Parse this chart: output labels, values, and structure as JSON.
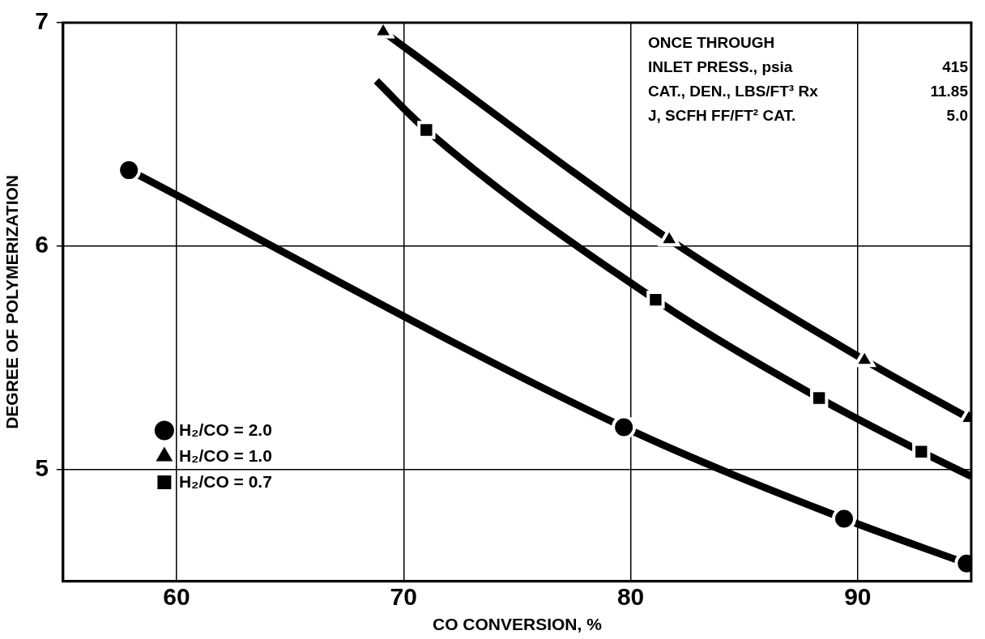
{
  "chart_data": {
    "type": "scatter",
    "xlabel": "CO CONVERSION, %",
    "ylabel": "DEGREE OF POLYMERIZATION",
    "xlim": [
      55,
      95
    ],
    "xticks": [
      60,
      70,
      80,
      90
    ],
    "ylim": [
      4.5,
      7
    ],
    "yticks": [
      5,
      6,
      7
    ],
    "grid": true,
    "legend": "left",
    "annotations": [
      "ONCE THROUGH",
      "INLET PRESS., psia 415",
      "CAT., DEN., LBS/FT³ Rx 11.85",
      "J, SCFH FF/FT² CAT. 5.0"
    ],
    "series": [
      {
        "type": "line",
        "marker": "none",
        "color": "#000000",
        "x": [
          57.9,
          79.7,
          89.4,
          94.8
        ],
        "values": [
          6.34,
          5.19,
          4.78,
          4.58
        ]
      },
      {
        "type": "line",
        "marker": "none",
        "color": "#000000",
        "x": [
          69.1,
          81.7,
          90.3,
          94.9
        ],
        "values": [
          6.96,
          6.03,
          5.49,
          5.23
        ]
      },
      {
        "type": "line",
        "marker": "none",
        "color": "#000000",
        "x": [
          68.8,
          71.0,
          81.1,
          88.3,
          92.8,
          95
        ],
        "values": [
          6.74,
          6.52,
          5.76,
          5.32,
          5.08,
          4.97
        ]
      },
      {
        "name": "H₂/CO = 2.0",
        "type": "scatter",
        "marker": "circle",
        "color": "#000000",
        "x": [
          57.9,
          79.7,
          89.4,
          94.8
        ],
        "values": [
          6.34,
          5.19,
          4.78,
          4.58
        ]
      },
      {
        "name": "H₂/CO = 1.0",
        "type": "scatter",
        "marker": "triangle",
        "color": "#000000",
        "x": [
          69.1,
          81.7,
          90.3,
          94.9
        ],
        "values": [
          6.96,
          6.03,
          5.49,
          5.23
        ]
      },
      {
        "name": "H₂/CO = 0.7",
        "type": "scatter",
        "marker": "square",
        "color": "#000000",
        "x": [
          71.0,
          81.1,
          88.3,
          92.8
        ],
        "values": [
          6.52,
          5.76,
          5.32,
          5.08
        ]
      }
    ]
  }
}
